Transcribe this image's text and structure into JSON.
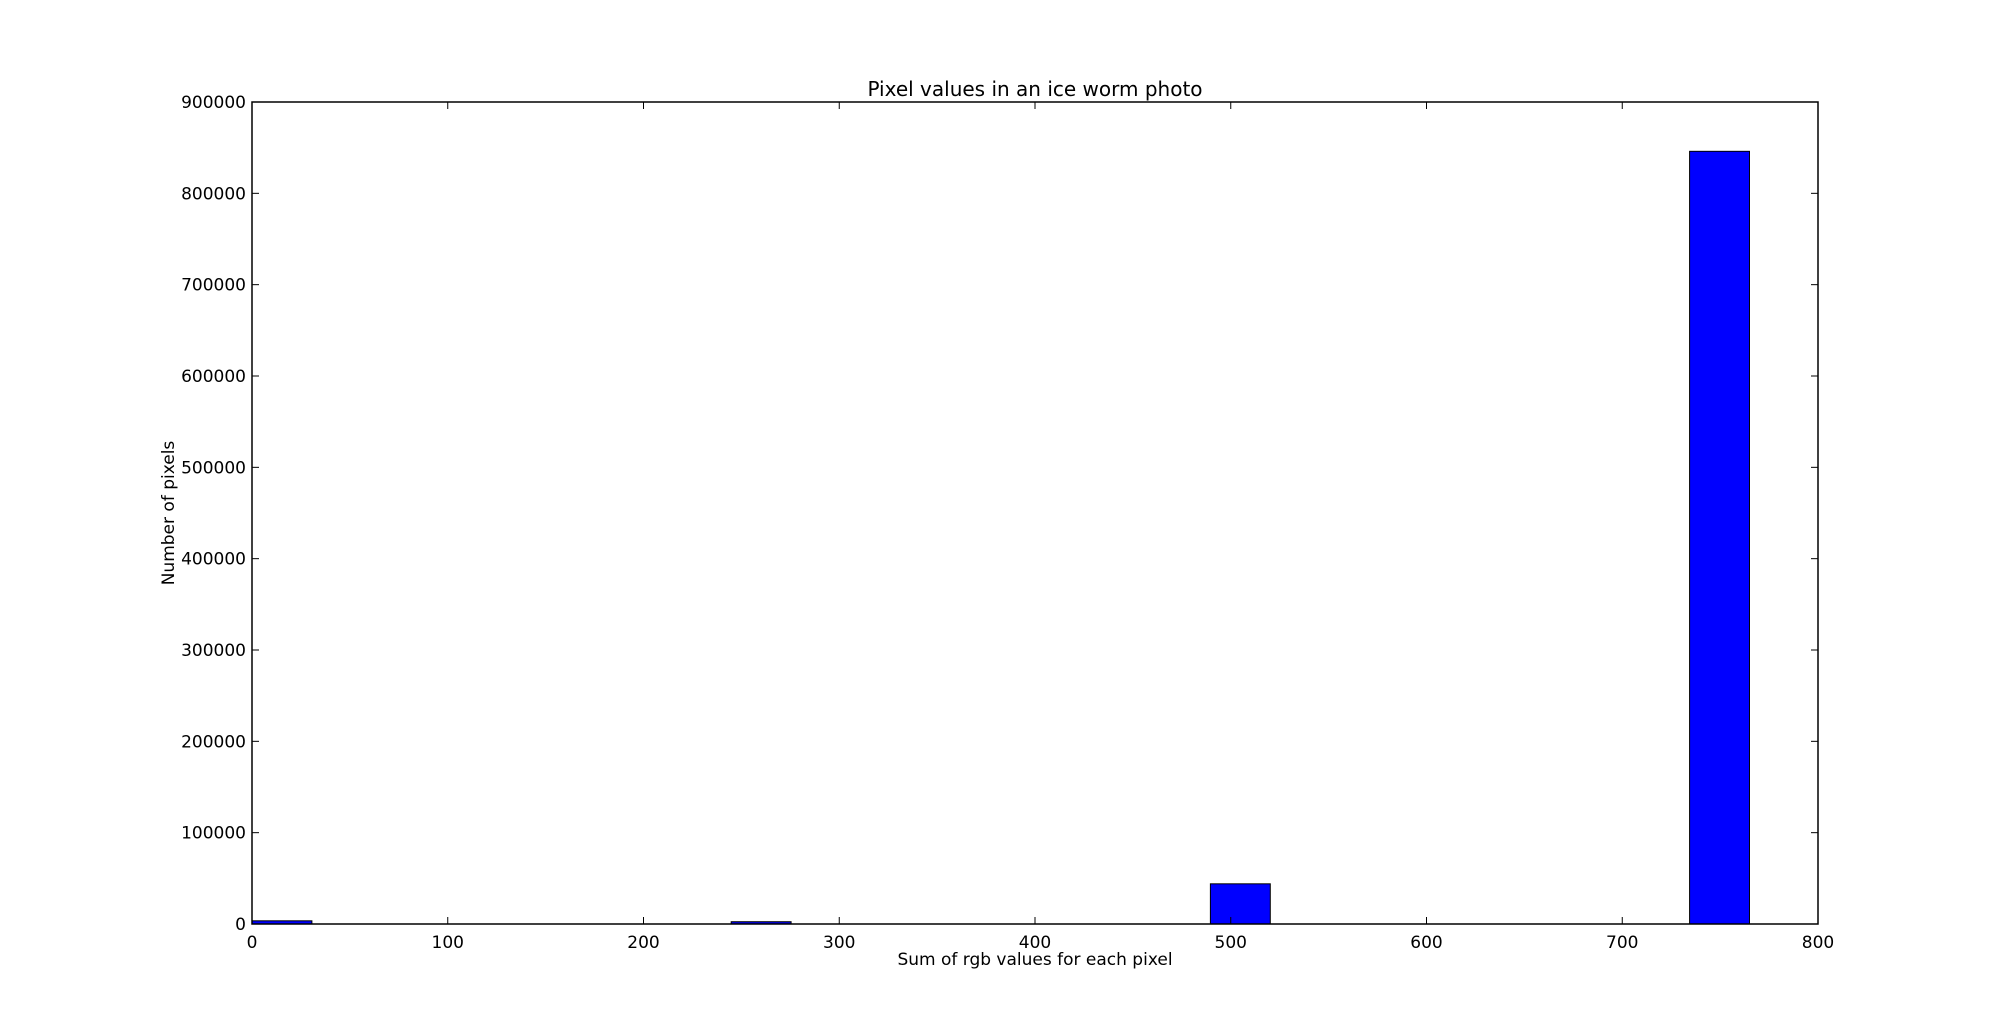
{
  "chart_data": {
    "type": "bar",
    "title": "Pixel values in an ice worm photo",
    "xlabel": "Sum of rgb values for each pixel",
    "ylabel": "Number of pixels",
    "xlim": [
      0,
      800
    ],
    "ylim": [
      0,
      900000
    ],
    "xticks": [
      "0",
      "100",
      "200",
      "300",
      "400",
      "500",
      "600",
      "700",
      "800"
    ],
    "yticks": [
      "0",
      "100000",
      "200000",
      "300000",
      "400000",
      "500000",
      "600000",
      "700000",
      "800000",
      "900000"
    ],
    "bar_color": "#0000ff",
    "grid": false,
    "bins": [
      {
        "x0": 0,
        "x1": 30.6,
        "value": 3500
      },
      {
        "x0": 244.8,
        "x1": 275.4,
        "value": 2500
      },
      {
        "x0": 489.6,
        "x1": 520.2,
        "value": 44000
      },
      {
        "x0": 734.4,
        "x1": 765,
        "value": 846000
      }
    ]
  }
}
